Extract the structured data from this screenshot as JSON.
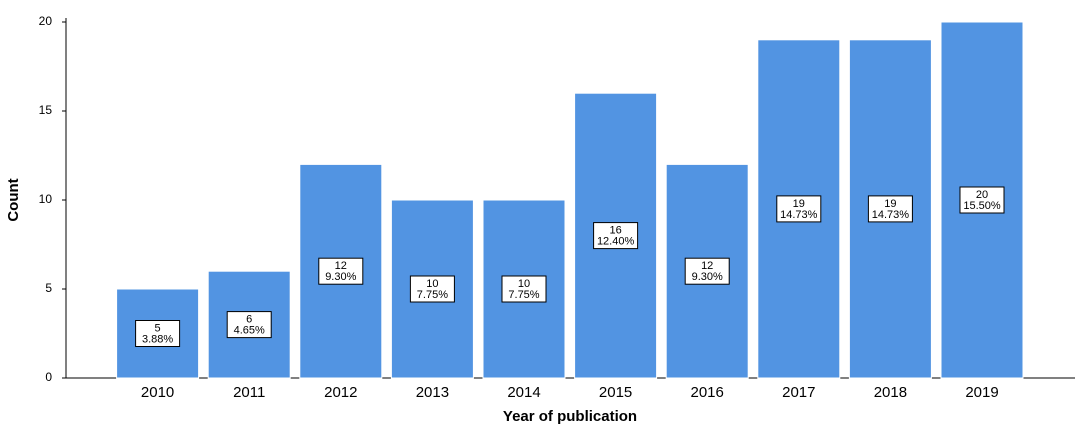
{
  "chart_data": {
    "type": "bar",
    "x_label": "Year of publication",
    "y_label": "Count",
    "categories": [
      "2010",
      "2011",
      "2012",
      "2013",
      "2014",
      "2015",
      "2016",
      "2017",
      "2018",
      "2019"
    ],
    "values": [
      5,
      6,
      12,
      10,
      10,
      16,
      12,
      19,
      19,
      20
    ],
    "percent_labels": [
      "3.88%",
      "4.65%",
      "9.30%",
      "7.75%",
      "7.75%",
      "12.40%",
      "9.30%",
      "14.73%",
      "14.73%",
      "15.50%"
    ],
    "color": "#5294e2",
    "ylim": [
      0,
      20
    ],
    "yticks": [
      0,
      5,
      10,
      15,
      20
    ]
  }
}
